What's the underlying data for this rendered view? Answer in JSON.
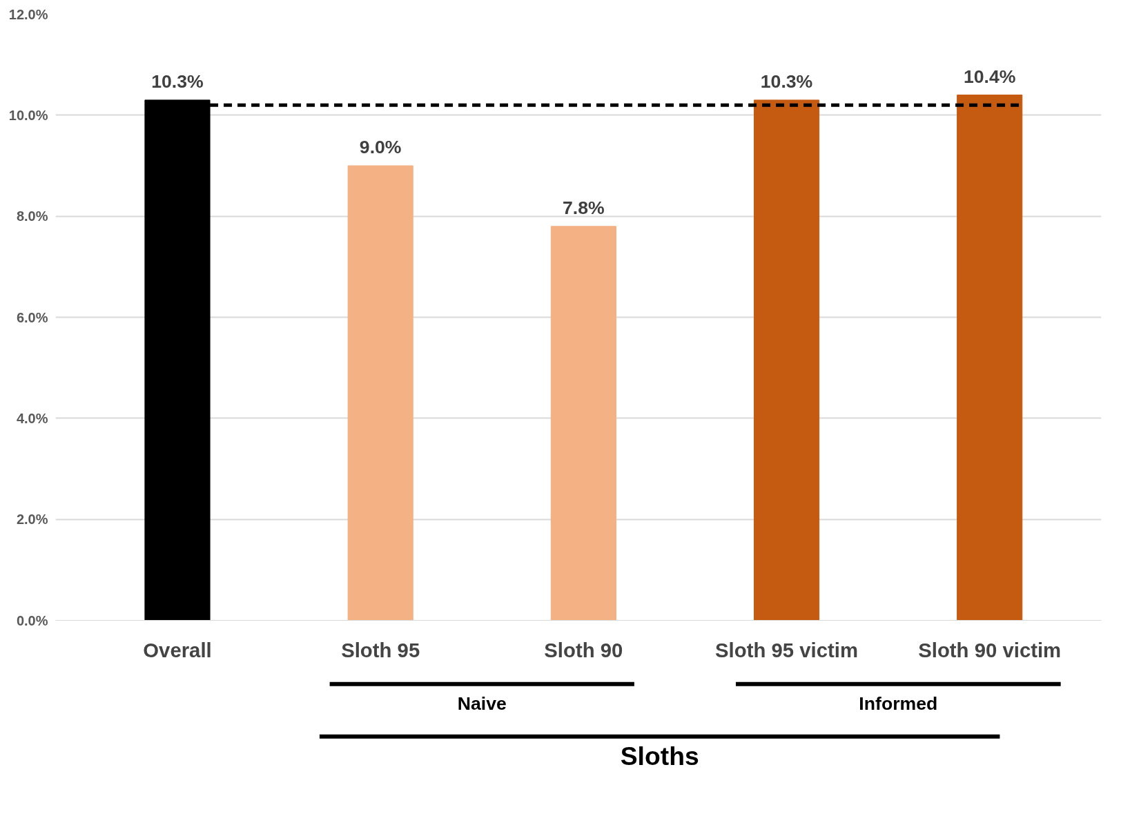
{
  "chart_data": {
    "type": "bar",
    "categories": [
      "Overall",
      "Sloth 95",
      "Sloth 90",
      "Sloth 95 victim",
      "Sloth 90 victim"
    ],
    "values": [
      10.3,
      9.0,
      7.8,
      10.3,
      10.4
    ],
    "colors": [
      "#000000",
      "#f4b183",
      "#f4b183",
      "#c55a11",
      "#c55a11"
    ],
    "value_labels": [
      "10.3%",
      "9.0%",
      "7.8%",
      "10.3%",
      "10.4%"
    ],
    "ylim": [
      0,
      12
    ],
    "yticks": [
      {
        "value": 0,
        "label": "0.0%"
      },
      {
        "value": 2,
        "label": "2.0%"
      },
      {
        "value": 4,
        "label": "4.0%"
      },
      {
        "value": 6,
        "label": "6.0%"
      },
      {
        "value": 8,
        "label": "8.0%"
      },
      {
        "value": 10,
        "label": "10.0%"
      },
      {
        "value": 12,
        "label": "12.0%"
      }
    ],
    "grid": "y",
    "ref_lines": [
      {
        "axis": "y",
        "value": 10.2,
        "color": "#000000",
        "line_style": "dashed"
      }
    ],
    "annotations": [
      "Naive",
      "Informed",
      "Sloths"
    ]
  }
}
